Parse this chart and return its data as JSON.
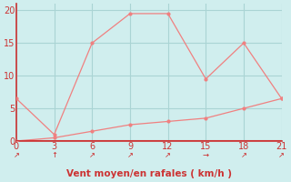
{
  "xlabel": "Vent moyen/en rafales ( km/h )",
  "background_color": "#d0eeee",
  "line_color": "#f08080",
  "grid_color": "#aad4d4",
  "axis_color": "#cc3333",
  "x_gust": [
    0,
    3,
    6,
    9,
    12,
    15,
    18,
    21
  ],
  "y_gust": [
    6.5,
    1.0,
    15.0,
    19.5,
    19.5,
    9.5,
    15.0,
    6.5
  ],
  "x_avg": [
    0,
    3,
    6,
    9,
    12,
    15,
    18,
    21
  ],
  "y_avg": [
    0.0,
    0.5,
    1.5,
    2.5,
    3.0,
    3.5,
    5.0,
    6.5
  ],
  "xlim": [
    0,
    21
  ],
  "ylim": [
    0,
    21
  ],
  "xticks": [
    0,
    3,
    6,
    9,
    12,
    15,
    18,
    21
  ],
  "yticks": [
    0,
    5,
    10,
    15,
    20
  ],
  "tick_fontsize": 7,
  "xlabel_fontsize": 7.5,
  "arrow_chars": [
    "↗",
    "↑",
    "↗",
    "↗",
    "↗",
    "→",
    "↗",
    "↗"
  ],
  "arrow_color": "#cc2222"
}
